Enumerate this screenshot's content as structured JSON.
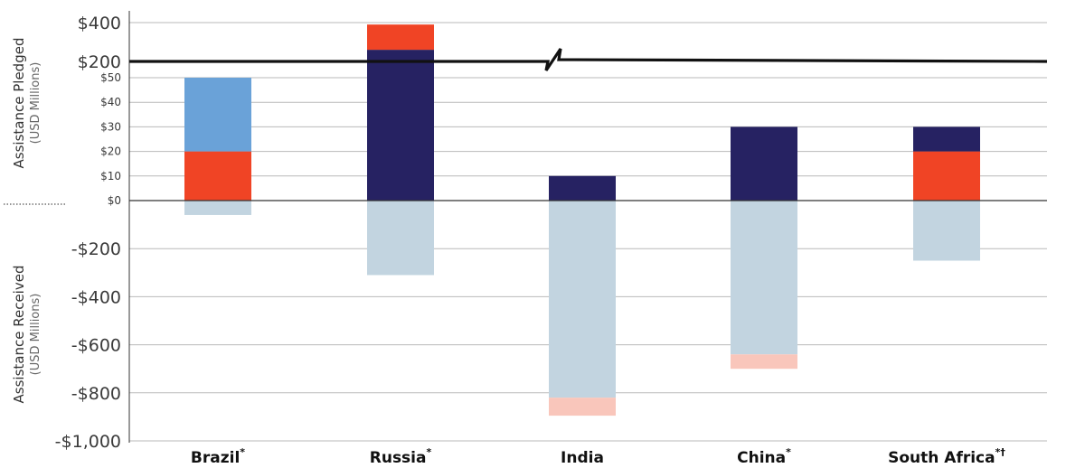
{
  "chart_data": {
    "type": "bar",
    "stacked": true,
    "categories": [
      "Brazil",
      "Russia",
      "India",
      "China",
      "South Africa"
    ],
    "category_marks": [
      "*",
      "*",
      "",
      "*",
      "*†"
    ],
    "upper_axis": {
      "title": "Assistance Pledged",
      "subtitle": "(USD Millions)",
      "ticks_low": [
        "$50",
        "$40",
        "$30",
        "$20",
        "$10",
        "$0"
      ],
      "ticks_high": [
        "$400",
        "$200"
      ],
      "break_between": [
        50,
        200
      ],
      "range_low": [
        0,
        50
      ],
      "range_high": [
        200,
        400
      ]
    },
    "lower_axis": {
      "title": "Assistance Received",
      "subtitle": "(USD Millions)",
      "ticks": [
        "-$200",
        "-$400",
        "-$600",
        "-$800",
        "-$1,000"
      ],
      "range": [
        -1000,
        0
      ]
    },
    "pledged_series": [
      {
        "color": "#f04425",
        "values": [
          20,
          0,
          0,
          0,
          20
        ]
      },
      {
        "color": "#6aa2d8",
        "values": [
          30,
          0,
          0,
          0,
          0
        ]
      },
      {
        "color": "#262262",
        "values": [
          0,
          260,
          10,
          30,
          10
        ]
      },
      {
        "color": "#f04425",
        "values": [
          0,
          130,
          0,
          0,
          0
        ]
      }
    ],
    "received_series": [
      {
        "color": "#c2d4e0",
        "values": [
          -60,
          -310,
          -820,
          -640,
          -250
        ]
      },
      {
        "color": "#f9c6bb",
        "values": [
          0,
          0,
          -75,
          -60,
          0
        ]
      }
    ],
    "colors": {
      "red": "#f04425",
      "light_blue": "#6aa2d8",
      "navy": "#262262",
      "pale_blue": "#c2d4e0",
      "pink": "#f9c6bb"
    }
  }
}
